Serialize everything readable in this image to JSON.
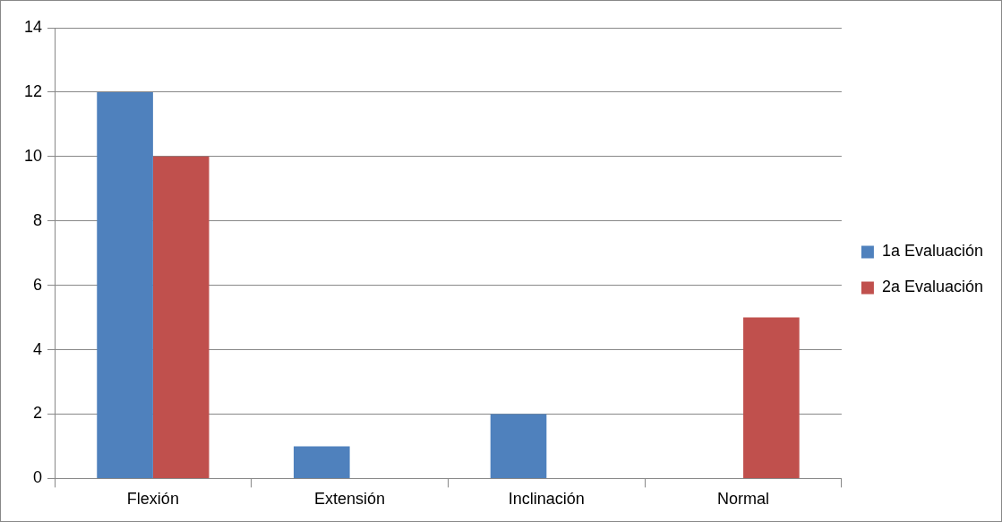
{
  "chart_data": {
    "type": "bar",
    "categories": [
      "Flexión",
      "Extensión",
      "Inclinación",
      "Normal"
    ],
    "series": [
      {
        "name": "1a Evaluación",
        "color": "#4f81bd",
        "values": [
          12,
          1,
          2,
          0
        ]
      },
      {
        "name": "2a Evaluación",
        "color": "#c0504d",
        "values": [
          10,
          0,
          0,
          5
        ]
      }
    ],
    "ylim": [
      0,
      14
    ],
    "yticks": [
      0,
      2,
      4,
      6,
      8,
      10,
      12,
      14
    ],
    "grid": "y",
    "legend": "right"
  }
}
